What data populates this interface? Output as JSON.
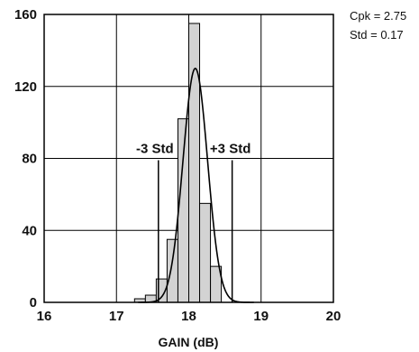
{
  "chart_data": {
    "type": "bar",
    "title": "",
    "xlabel": "GAIN (dB)",
    "ylabel": "",
    "xlim": [
      16,
      20
    ],
    "ylim": [
      0,
      160
    ],
    "x_ticks": [
      "16",
      "17",
      "18",
      "19",
      "20"
    ],
    "y_ticks": [
      "0",
      "40",
      "80",
      "120",
      "160"
    ],
    "grid": true,
    "bins": [
      {
        "start": 17.25,
        "end": 17.4,
        "count": 2
      },
      {
        "start": 17.4,
        "end": 17.55,
        "count": 4
      },
      {
        "start": 17.55,
        "end": 17.7,
        "count": 13
      },
      {
        "start": 17.7,
        "end": 17.85,
        "count": 35
      },
      {
        "start": 17.85,
        "end": 18.0,
        "count": 102
      },
      {
        "start": 18.0,
        "end": 18.15,
        "count": 155
      },
      {
        "start": 18.15,
        "end": 18.3,
        "count": 55
      },
      {
        "start": 18.3,
        "end": 18.45,
        "count": 20
      }
    ],
    "normal_fit": {
      "mean": 18.09,
      "std": 0.17,
      "peak": 130
    },
    "limit_lines": [
      {
        "label": "-3 Std",
        "x": 17.58,
        "top": 79
      },
      {
        "label": "+3 Std",
        "x": 18.6,
        "top": 79
      }
    ],
    "stats": [
      "Cpk = 2.75",
      "Std = 0.17"
    ]
  }
}
